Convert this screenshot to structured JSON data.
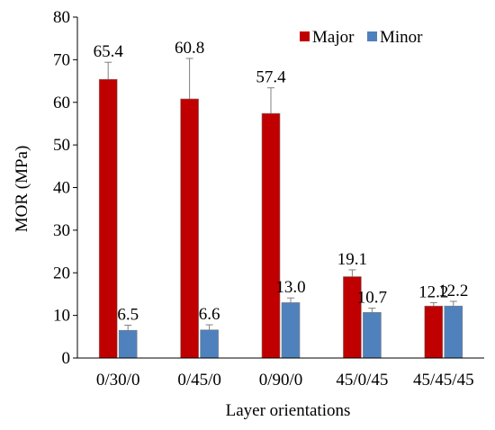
{
  "chart_data": {
    "type": "bar",
    "xlabel": "Layer orientations",
    "ylabel": "MOR (MPa)",
    "ylim": [
      0,
      80
    ],
    "yticks": [
      0,
      10,
      20,
      30,
      40,
      50,
      60,
      70,
      80
    ],
    "categories": [
      "0/30/0",
      "0/45/0",
      "0/90/0",
      "45/0/45",
      "45/45/45"
    ],
    "series": [
      {
        "name": "Major",
        "color": "#C00000",
        "values": [
          65.4,
          60.8,
          57.4,
          19.1,
          12.2
        ],
        "labels": [
          "65.4",
          "60.8",
          "57.4",
          "19.1",
          "12.2"
        ],
        "error": [
          4.0,
          9.5,
          6.0,
          1.6,
          0.8
        ]
      },
      {
        "name": "Minor",
        "color": "#4F81BD",
        "values": [
          6.5,
          6.6,
          13.0,
          10.7,
          12.2
        ],
        "labels": [
          "6.5",
          "6.6",
          "13.0",
          "10.7",
          "12.2"
        ],
        "error": [
          1.2,
          1.2,
          1.1,
          1.0,
          1.1
        ]
      }
    ],
    "legend": "top-right",
    "grid": false
  }
}
